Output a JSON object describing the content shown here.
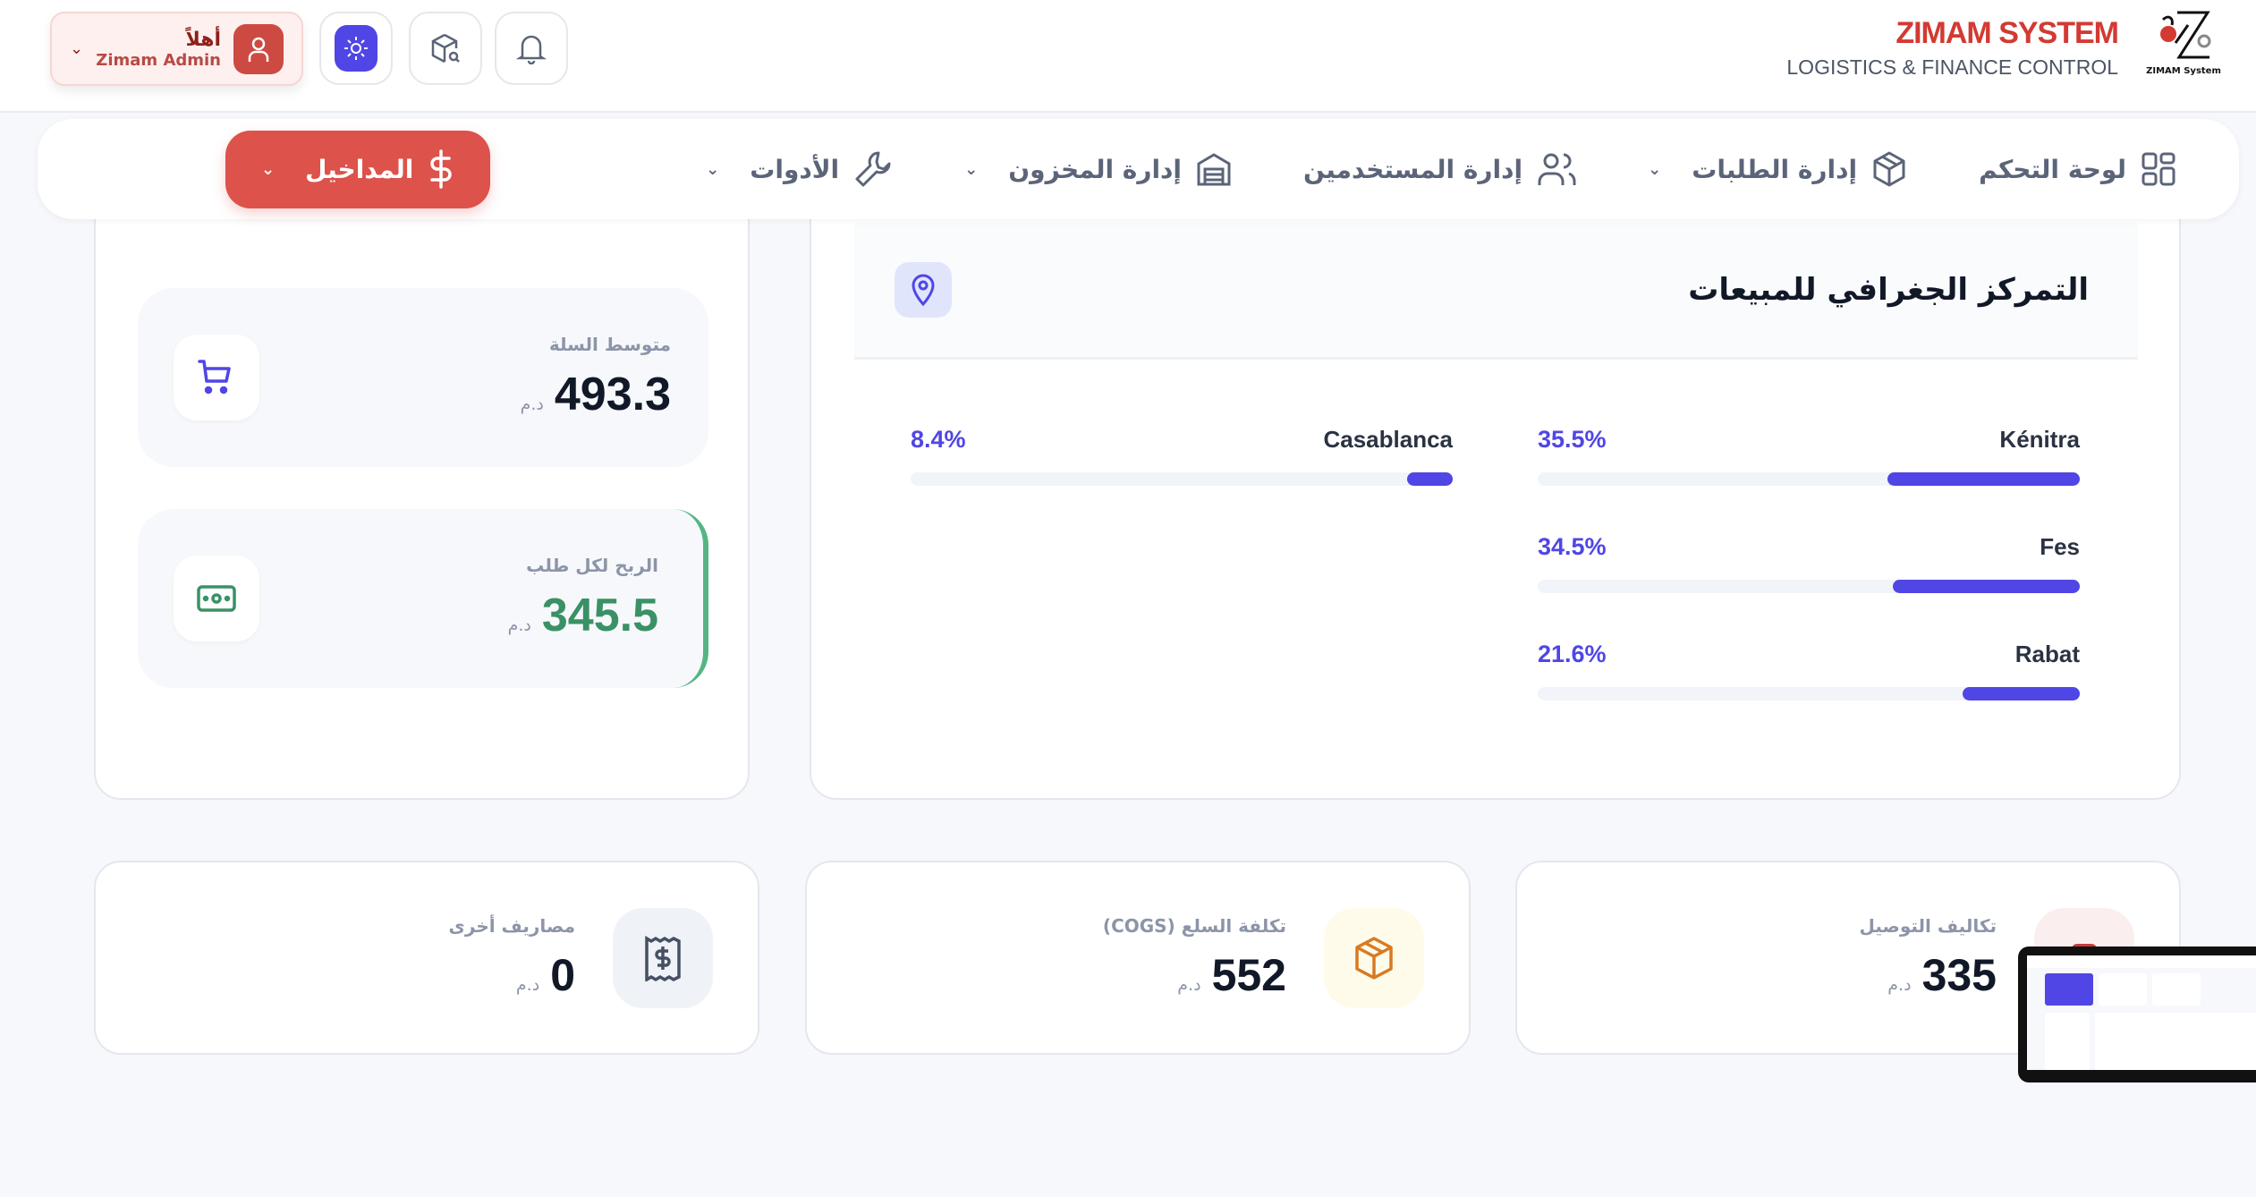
{
  "header": {
    "brand_title": "ZIMAM SYSTEM",
    "brand_subtitle": "LOGISTICS & FINANCE CONTROL",
    "logo_caption": "ZIMAM System",
    "user": {
      "greeting": "أهلاً",
      "name": "Zimam Admin"
    }
  },
  "nav": {
    "items": [
      {
        "label": "لوحة التحكم",
        "icon": "grid-icon",
        "dropdown": false
      },
      {
        "label": "إدارة الطلبات",
        "icon": "package-icon",
        "dropdown": true
      },
      {
        "label": "إدارة المستخدمين",
        "icon": "users-icon",
        "dropdown": false
      },
      {
        "label": "إدارة المخزون",
        "icon": "warehouse-icon",
        "dropdown": true
      },
      {
        "label": "الأدوات",
        "icon": "wrench-icon",
        "dropdown": true
      },
      {
        "label": "المداخيل",
        "icon": "dollar-icon",
        "dropdown": true,
        "active": true
      }
    ]
  },
  "side_stats": [
    {
      "label": "متوسط السلة",
      "value": "493.3",
      "currency": "د.م",
      "icon": "cart-icon",
      "color": "#4f46e5"
    },
    {
      "label": "الربح لكل طلب",
      "value": "345.5",
      "currency": "د.م",
      "icon": "banknote-icon",
      "color": "#3a9166"
    }
  ],
  "geo": {
    "title": "التمركز الجغرافي للمبيعات",
    "icon": "map-pin-icon",
    "cities": [
      {
        "name": "Kénitra",
        "percent": 35.5,
        "label": "35.5%"
      },
      {
        "name": "Casablanca",
        "percent": 8.4,
        "label": "8.4%"
      },
      {
        "name": "Fes",
        "percent": 34.5,
        "label": "34.5%"
      },
      {
        "name": "Rabat",
        "percent": 21.6,
        "label": "21.6%"
      }
    ],
    "accent": "#4f46e5"
  },
  "cost_cards": [
    {
      "label": "تكاليف التوصيل",
      "value": "335",
      "currency": "د.م",
      "icon": "truck-icon",
      "bg": "#fbeeee",
      "color": "#c53b3b"
    },
    {
      "label": "تكلفة السلع (COGS)",
      "value": "552",
      "currency": "د.م",
      "icon": "box-icon",
      "bg": "#fffbea",
      "color": "#d97a22"
    },
    {
      "label": "مصاريف أخرى",
      "value": "0",
      "currency": "د.م",
      "icon": "receipt-icon",
      "bg": "#eff2f7",
      "color": "#475063"
    }
  ]
}
